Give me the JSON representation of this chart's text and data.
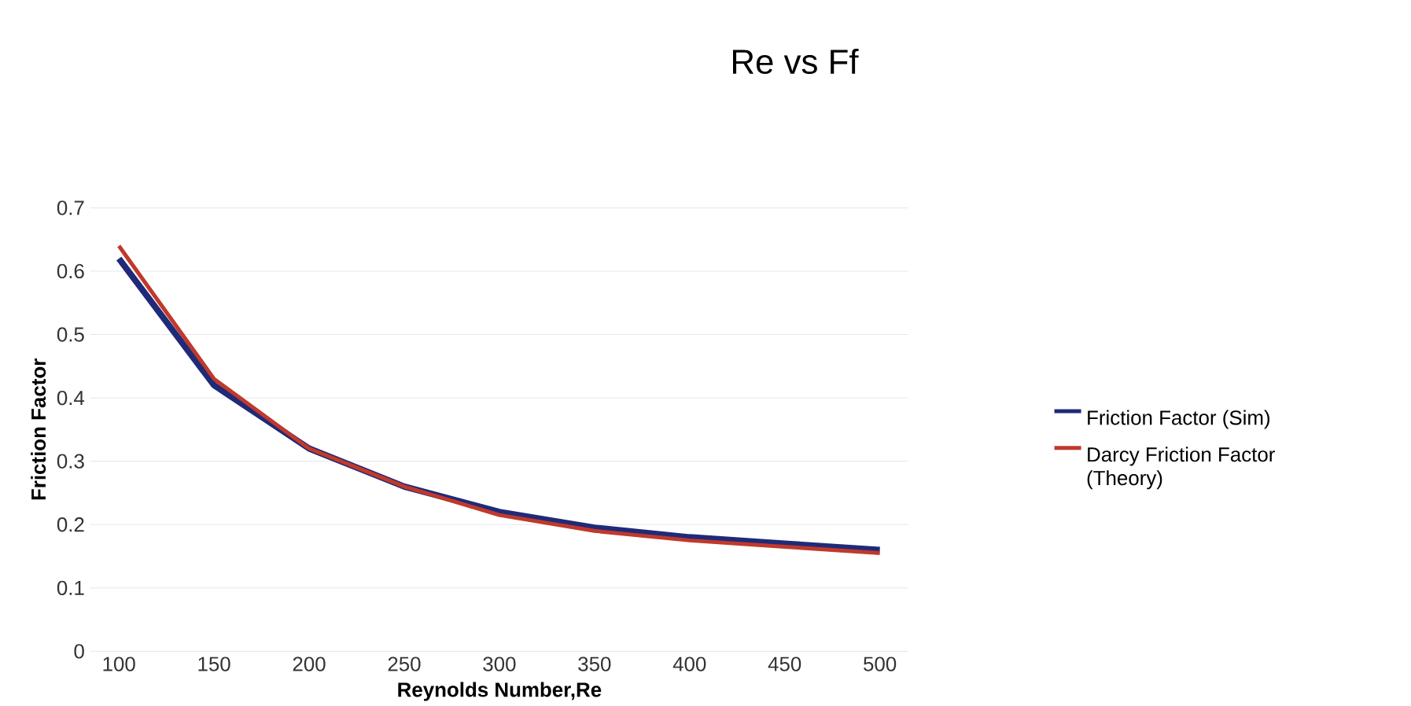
{
  "chart_data": {
    "type": "line",
    "title": "Re vs Ff",
    "xlabel": "Reynolds Number,Re",
    "ylabel": "Friction Factor",
    "categories": [
      "100",
      "150",
      "200",
      "250",
      "300",
      "350",
      "400",
      "450",
      "500"
    ],
    "series": [
      {
        "name": "Friction Factor (Sim)",
        "color": "#1f2a78",
        "values": [
          0.62,
          0.42,
          0.32,
          0.26,
          0.22,
          0.195,
          0.18,
          0.17,
          0.16
        ]
      },
      {
        "name": "Darcy Friction Factor (Theory)",
        "color": "#c0392b",
        "values": [
          0.64,
          0.43,
          0.32,
          0.26,
          0.215,
          0.19,
          0.175,
          0.165,
          0.155
        ]
      }
    ],
    "ylim": [
      0,
      0.7
    ],
    "yticks": [
      0,
      0.1,
      0.2,
      0.3,
      0.4,
      0.5,
      0.6,
      0.7
    ],
    "grid": "y",
    "legend": "right",
    "marker": "none",
    "line_style": "solid"
  }
}
